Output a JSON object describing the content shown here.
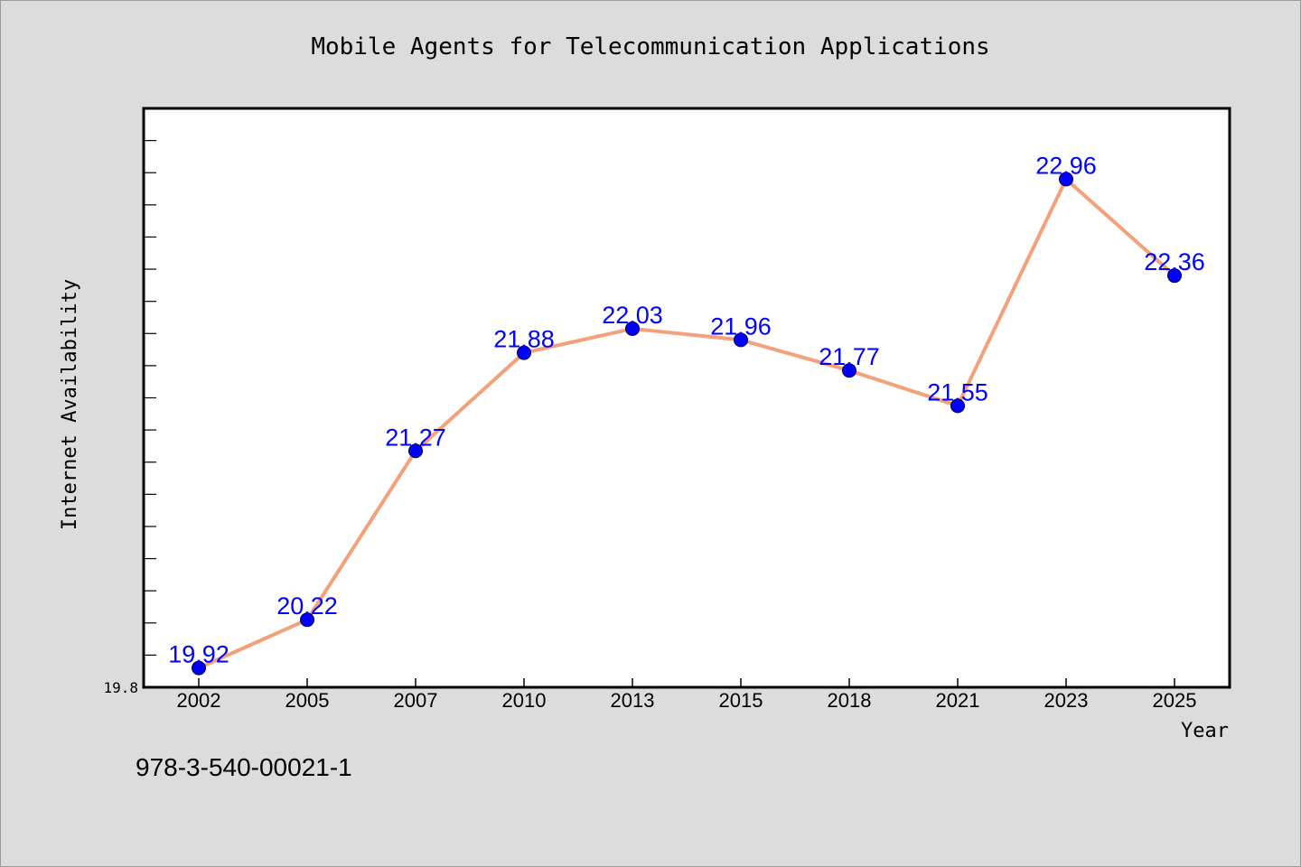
{
  "chart_data": {
    "type": "line",
    "title": "Mobile Agents for Telecommunication Applications",
    "xlabel": "Year",
    "ylabel": "Internet Availability",
    "categories": [
      "2002",
      "2005",
      "2007",
      "2010",
      "2013",
      "2015",
      "2018",
      "2021",
      "2023",
      "2025"
    ],
    "series": [
      {
        "values": [
          19.92,
          20.22,
          21.27,
          21.88,
          22.03,
          21.96,
          21.77,
          21.55,
          22.96,
          22.36
        ],
        "data_labels": [
          "19.92",
          "20.22",
          "21.27",
          "21.88",
          "22.03",
          "21.96",
          "21.77",
          "21.55",
          "22.96",
          "22.36"
        ]
      }
    ],
    "ylim": [
      19.8,
      23.4
    ],
    "yticks_labeled": [
      "19.8"
    ],
    "grid": false,
    "legend": "none",
    "colors": {
      "line": "#f4a07a",
      "marker": "#0000ff",
      "data_label": "#0000ff",
      "plot_background": "#ffffff",
      "page_background": "#dcdcdc"
    }
  },
  "footnote": "978-3-540-00021-1"
}
